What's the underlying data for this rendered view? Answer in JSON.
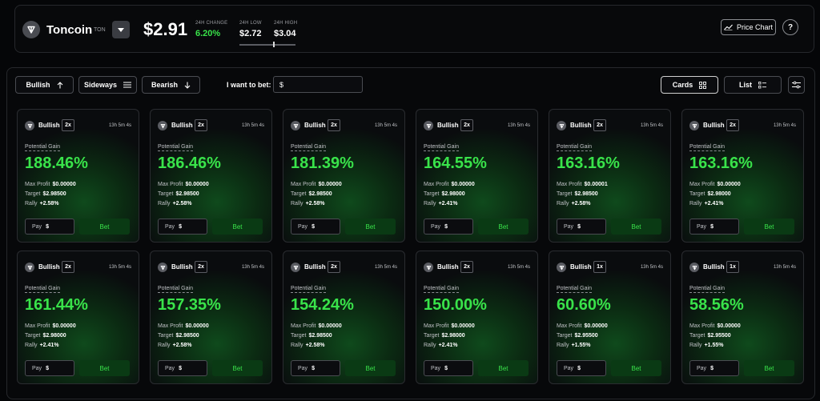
{
  "header": {
    "coin_name": "Toncoin",
    "coin_symbol": "TON",
    "price": "$2.91",
    "change_label": "24H CHANGE",
    "change_value": "6.20%",
    "low_label": "24H LOW",
    "low_value": "$2.72",
    "high_label": "24H HIGH",
    "high_value": "$3.04",
    "price_chart_label": "Price Chart",
    "help_label": "?"
  },
  "controls": {
    "bullish_label": "Bullish",
    "sideways_label": "Sideways",
    "bearish_label": "Bearish",
    "bet_prompt": "I want to bet:",
    "bet_currency": "$",
    "cards_label": "Cards",
    "list_label": "List"
  },
  "card_labels": {
    "potential_gain": "Potential Gain",
    "max_profit": "Max Profit",
    "target": "Target",
    "rally": "Rally",
    "pay": "Pay",
    "pay_currency": "$",
    "bet": "Bet"
  },
  "cards": [
    {
      "direction": "Bullish",
      "leverage": "2x",
      "time": "13h 5m 4s",
      "gain": "188.46%",
      "max_profit": "$0.00000",
      "target": "$2.98500",
      "rally": "+2.58%"
    },
    {
      "direction": "Bullish",
      "leverage": "2x",
      "time": "13h 5m 4s",
      "gain": "186.46%",
      "max_profit": "$0.00000",
      "target": "$2.98500",
      "rally": "+2.58%"
    },
    {
      "direction": "Bullish",
      "leverage": "2x",
      "time": "13h 5m 4s",
      "gain": "181.39%",
      "max_profit": "$0.00000",
      "target": "$2.98500",
      "rally": "+2.58%"
    },
    {
      "direction": "Bullish",
      "leverage": "2x",
      "time": "13h 5m 4s",
      "gain": "164.55%",
      "max_profit": "$0.00000",
      "target": "$2.98000",
      "rally": "+2.41%"
    },
    {
      "direction": "Bullish",
      "leverage": "2x",
      "time": "13h 5m 4s",
      "gain": "163.16%",
      "max_profit": "$0.00001",
      "target": "$2.98500",
      "rally": "+2.58%"
    },
    {
      "direction": "Bullish",
      "leverage": "2x",
      "time": "13h 5m 4s",
      "gain": "163.16%",
      "max_profit": "$0.00000",
      "target": "$2.98000",
      "rally": "+2.41%"
    },
    {
      "direction": "Bullish",
      "leverage": "2x",
      "time": "13h 5m 4s",
      "gain": "161.44%",
      "max_profit": "$0.00000",
      "target": "$2.98000",
      "rally": "+2.41%"
    },
    {
      "direction": "Bullish",
      "leverage": "2x",
      "time": "13h 5m 4s",
      "gain": "157.35%",
      "max_profit": "$0.00000",
      "target": "$2.98500",
      "rally": "+2.58%"
    },
    {
      "direction": "Bullish",
      "leverage": "2x",
      "time": "13h 5m 4s",
      "gain": "154.24%",
      "max_profit": "$0.00000",
      "target": "$2.98500",
      "rally": "+2.58%"
    },
    {
      "direction": "Bullish",
      "leverage": "2x",
      "time": "13h 5m 4s",
      "gain": "150.00%",
      "max_profit": "$0.00000",
      "target": "$2.98000",
      "rally": "+2.41%"
    },
    {
      "direction": "Bullish",
      "leverage": "1x",
      "time": "13h 5m 4s",
      "gain": "60.60%",
      "max_profit": "$0.00000",
      "target": "$2.95500",
      "rally": "+1.55%"
    },
    {
      "direction": "Bullish",
      "leverage": "1x",
      "time": "13h 5m 4s",
      "gain": "58.56%",
      "max_profit": "$0.00000",
      "target": "$2.95500",
      "rally": "+1.55%"
    }
  ]
}
